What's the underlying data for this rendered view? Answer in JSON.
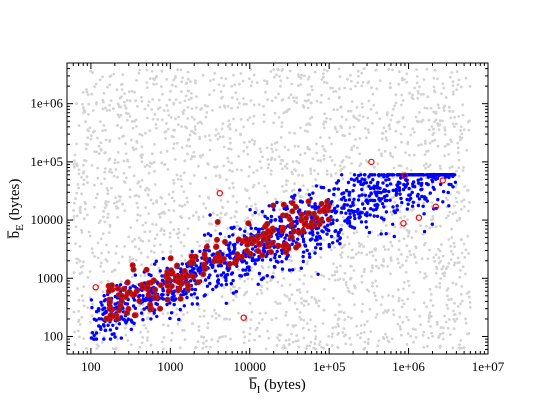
{
  "chart_data": {
    "type": "scatter",
    "title": "",
    "xlabel": {
      "main": "b",
      "sub": "I",
      "unit": " (bytes)",
      "overbar": true
    },
    "ylabel": {
      "main": "b",
      "sub": "E",
      "unit": " (bytes)",
      "overbar": true
    },
    "xscale": "log",
    "yscale": "log",
    "xlim": [
      50,
      10000000
    ],
    "ylim": [
      50,
      5000000
    ],
    "x_ticks": [
      {
        "value": 100,
        "label": "100"
      },
      {
        "value": 1000,
        "label": "1000"
      },
      {
        "value": 10000,
        "label": "10000"
      },
      {
        "value": 100000,
        "label": "1e+05"
      },
      {
        "value": 1000000,
        "label": "1e+06"
      },
      {
        "value": 10000000,
        "label": "1e+07"
      }
    ],
    "y_ticks": [
      {
        "value": 100,
        "label": "100"
      },
      {
        "value": 1000,
        "label": "1000"
      },
      {
        "value": 10000,
        "label": "10000"
      },
      {
        "value": 100000,
        "label": "1e+05"
      },
      {
        "value": 1000000,
        "label": "1e+06"
      }
    ],
    "grid": false,
    "legend": "none",
    "series": [
      {
        "id": "background",
        "marker": "dot",
        "color": "#d3d3d3",
        "count": 2200,
        "extent": {
          "x": [
            60,
            6000000
          ],
          "y": [
            60,
            4000000
          ]
        }
      },
      {
        "id": "main",
        "marker": "dot",
        "color": "#0000ff",
        "count": 1200,
        "trend": "log10(y) ~ 1.0 + 0.62*log10(x)",
        "extent": {
          "x": [
            100,
            4000000
          ],
          "y": [
            90,
            60000
          ]
        }
      },
      {
        "id": "highlighted",
        "marker": "dot-in-circle",
        "color": "#8b1a1a",
        "ring_color": "#ff0000",
        "count": 200,
        "extent": {
          "x": [
            150,
            100000
          ],
          "y": [
            200,
            50000
          ]
        }
      },
      {
        "id": "outliers",
        "marker": "open-circle",
        "color": "#ff0000",
        "points": [
          [
            115,
            700
          ],
          [
            4200,
            29000
          ],
          [
            8400,
            210
          ],
          [
            340000,
            100000
          ],
          [
            900000,
            58000
          ],
          [
            860000,
            8800
          ],
          [
            1350000,
            11000
          ],
          [
            2200000,
            17000
          ],
          [
            2700000,
            48000
          ]
        ]
      }
    ]
  }
}
